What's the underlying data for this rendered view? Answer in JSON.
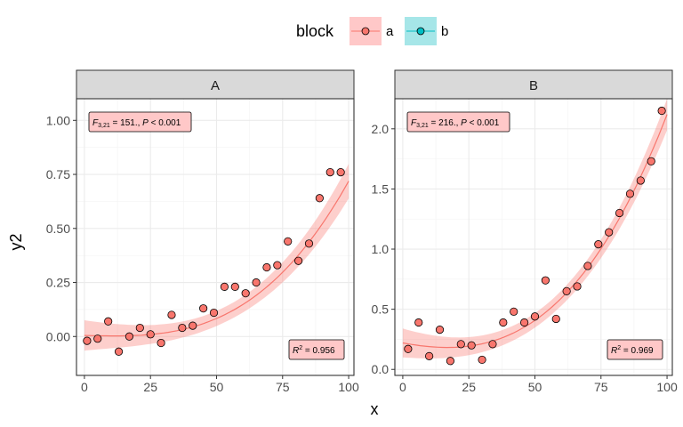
{
  "chart_data": {
    "type": "scatter",
    "xlabel": "x",
    "ylabel": "y2",
    "legend": {
      "title": "block",
      "position": "top",
      "entries": [
        {
          "label": "a",
          "point_color": "#F8766D",
          "fill_color": "#F8766D"
        },
        {
          "label": "b",
          "point_color": "#00BFC4",
          "fill_color": "#00BFC4"
        }
      ]
    },
    "colors": {
      "series_a": "#F8766D",
      "band_a": "#F8766D",
      "panel_border": "#333333",
      "strip_fill": "#d9d9d9",
      "grid": "#ebebeb",
      "annot_fill": "#ffc8c8"
    },
    "grid": true,
    "panels": [
      {
        "strip": "A",
        "series": "a",
        "xlim": [
          -3,
          102
        ],
        "ylim": [
          -0.18,
          1.1
        ],
        "x_ticks": [
          0,
          25,
          50,
          75,
          100
        ],
        "x_tick_labels": [
          "0",
          "25",
          "50",
          "75",
          "100"
        ],
        "y_ticks": [
          0,
          0.25,
          0.5,
          0.75,
          1.0
        ],
        "y_tick_labels": [
          "0.00",
          "0.25",
          "0.50",
          "0.75",
          "1.00"
        ],
        "points": [
          [
            1,
            -0.02
          ],
          [
            5,
            -0.01
          ],
          [
            9,
            0.07
          ],
          [
            13,
            -0.07
          ],
          [
            17,
            0.0
          ],
          [
            21,
            0.04
          ],
          [
            25,
            0.01
          ],
          [
            29,
            -0.03
          ],
          [
            33,
            0.1
          ],
          [
            37,
            0.04
          ],
          [
            41,
            0.05
          ],
          [
            45,
            0.13
          ],
          [
            49,
            0.11
          ],
          [
            53,
            0.23
          ],
          [
            57,
            0.23
          ],
          [
            61,
            0.2
          ],
          [
            65,
            0.25
          ],
          [
            69,
            0.32
          ],
          [
            73,
            0.33
          ],
          [
            77,
            0.44
          ],
          [
            81,
            0.35
          ],
          [
            85,
            0.43
          ],
          [
            89,
            0.64
          ],
          [
            93,
            0.76
          ],
          [
            97,
            0.76
          ]
        ],
        "fit": {
          "x": [
            0,
            100
          ],
          "model": "cubic",
          "coef": [
            0.005,
            -0.0003,
            4e-07,
            7.4e-07
          ],
          "se_at": {
            "0": 0.07,
            "50": 0.035,
            "100": 0.08
          }
        },
        "annot_top": {
          "F": "F",
          "sub": "3,21",
          "rest": " = 151., ",
          "P": "P",
          "rest2": " < 0.001"
        },
        "annot_bottom": {
          "R": "R",
          "sup": "2",
          "rest": " = 0.956"
        }
      },
      {
        "strip": "B",
        "series": "a",
        "xlim": [
          -3,
          102
        ],
        "ylim": [
          -0.05,
          2.25
        ],
        "x_ticks": [
          0,
          25,
          50,
          75,
          100
        ],
        "x_tick_labels": [
          "0",
          "25",
          "50",
          "75",
          "100"
        ],
        "y_ticks": [
          0.0,
          0.5,
          1.0,
          1.5,
          2.0
        ],
        "y_tick_labels": [
          "0.0",
          "0.5",
          "1.0",
          "1.5",
          "2.0"
        ],
        "points": [
          [
            2,
            0.17
          ],
          [
            6,
            0.39
          ],
          [
            10,
            0.11
          ],
          [
            14,
            0.33
          ],
          [
            18,
            0.07
          ],
          [
            22,
            0.21
          ],
          [
            26,
            0.2
          ],
          [
            30,
            0.08
          ],
          [
            34,
            0.21
          ],
          [
            38,
            0.39
          ],
          [
            42,
            0.48
          ],
          [
            46,
            0.39
          ],
          [
            50,
            0.44
          ],
          [
            54,
            0.74
          ],
          [
            58,
            0.42
          ],
          [
            62,
            0.65
          ],
          [
            66,
            0.69
          ],
          [
            70,
            0.86
          ],
          [
            74,
            1.04
          ],
          [
            78,
            1.14
          ],
          [
            82,
            1.3
          ],
          [
            86,
            1.46
          ],
          [
            90,
            1.57
          ],
          [
            94,
            1.73
          ],
          [
            98,
            2.15
          ]
        ],
        "fit": {
          "x": [
            0,
            100
          ],
          "model": "cubic",
          "coef": [
            0.22,
            -0.004,
            8e-05,
            1.5e-06
          ],
          "se_at": {
            "0": 0.12,
            "50": 0.06,
            "100": 0.13
          }
        },
        "annot_top": {
          "F": "F",
          "sub": "3,21",
          "rest": " = 216., ",
          "P": "P",
          "rest2": " < 0.001"
        },
        "annot_bottom": {
          "R": "R",
          "sup": "2",
          "rest": " = 0.969"
        }
      }
    ]
  }
}
